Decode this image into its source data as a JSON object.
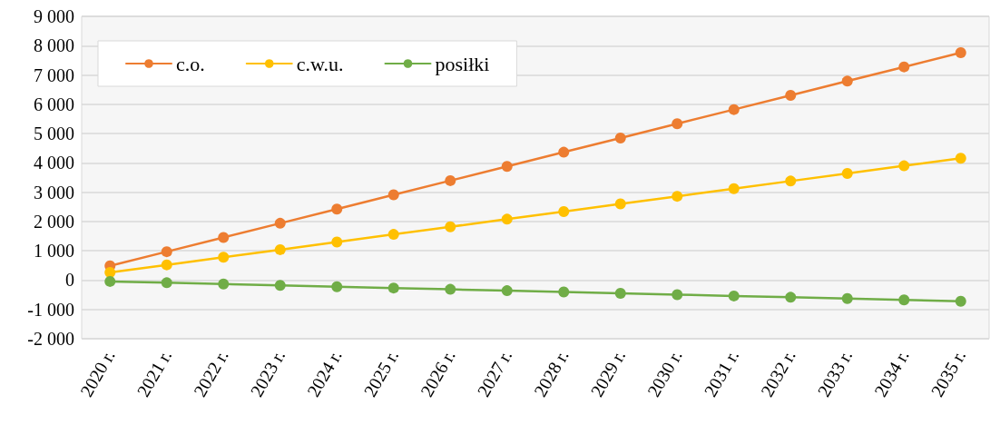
{
  "chart_data": {
    "type": "line",
    "categories": [
      "2020 r.",
      "2021 r.",
      "2022 r.",
      "2023 r.",
      "2024 r.",
      "2025 r.",
      "2026 r.",
      "2027 r.",
      "2028 r.",
      "2029 r.",
      "2030 r.",
      "2031 r.",
      "2032 r.",
      "2033 r.",
      "2034 r.",
      "2035 r."
    ],
    "series": [
      {
        "name": "c.o.",
        "color": "#ed7d31",
        "values": [
          485,
          970,
          1455,
          1940,
          2425,
          2910,
          3395,
          3880,
          4365,
          4850,
          5335,
          5820,
          6305,
          6790,
          7275,
          7760
        ]
      },
      {
        "name": "c.w.u.",
        "color": "#ffc000",
        "values": [
          260,
          520,
          780,
          1040,
          1300,
          1560,
          1820,
          2080,
          2340,
          2600,
          2860,
          3120,
          3380,
          3640,
          3900,
          4160
        ]
      },
      {
        "name": "posiłki",
        "color": "#70ad47",
        "values": [
          -45,
          -90,
          -135,
          -180,
          -225,
          -270,
          -315,
          -360,
          -405,
          -450,
          -495,
          -540,
          -585,
          -630,
          -675,
          -720
        ]
      }
    ],
    "ylim": [
      -2000,
      9000
    ],
    "yticks": [
      {
        "value": -2000,
        "label": "-2 000"
      },
      {
        "value": -1000,
        "label": "-1 000"
      },
      {
        "value": 0,
        "label": "0"
      },
      {
        "value": 1000,
        "label": "1 000"
      },
      {
        "value": 2000,
        "label": "2 000"
      },
      {
        "value": 3000,
        "label": "3 000"
      },
      {
        "value": 4000,
        "label": "4 000"
      },
      {
        "value": 5000,
        "label": "5 000"
      },
      {
        "value": 6000,
        "label": "6 000"
      },
      {
        "value": 7000,
        "label": "7 000"
      },
      {
        "value": 8000,
        "label": "8 000"
      },
      {
        "value": 9000,
        "label": "9 000"
      }
    ],
    "grid": "y",
    "legend": "top left",
    "marker": "circle",
    "line_style": "solid"
  }
}
